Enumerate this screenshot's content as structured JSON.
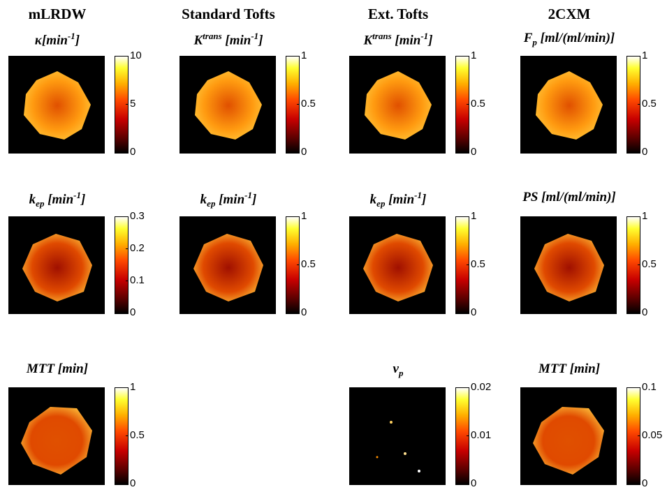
{
  "columns": [
    {
      "header": "mLRDW",
      "panels": [
        {
          "label": [
            {
              "text": "κ[min"
            },
            {
              "text": "-1",
              "style": "sup"
            },
            {
              "text": "]"
            }
          ],
          "ticks": [
            "0",
            "5",
            "10"
          ]
        },
        {
          "label": [
            {
              "text": "k"
            },
            {
              "text": "ep",
              "style": "sub"
            },
            {
              "text": " [min"
            },
            {
              "text": "-1",
              "style": "sup"
            },
            {
              "text": "]"
            }
          ],
          "ticks": [
            "0",
            "0.1",
            "0.2",
            "0.3"
          ]
        },
        {
          "label": [
            {
              "text": "MTT [min]"
            }
          ],
          "ticks": [
            "0",
            "0.5",
            "1"
          ]
        }
      ]
    },
    {
      "header": "Standard Tofts",
      "panels": [
        {
          "label": [
            {
              "text": "K"
            },
            {
              "text": "trans",
              "style": "sup"
            },
            {
              "text": " [min"
            },
            {
              "text": "-1",
              "style": "sup"
            },
            {
              "text": "]"
            }
          ],
          "ticks": [
            "0",
            "0.5",
            "1"
          ]
        },
        {
          "label": [
            {
              "text": "k"
            },
            {
              "text": "ep",
              "style": "sub"
            },
            {
              "text": " [min"
            },
            {
              "text": "-1",
              "style": "sup"
            },
            {
              "text": "]"
            }
          ],
          "ticks": [
            "0",
            "0.5",
            "1"
          ]
        },
        null
      ]
    },
    {
      "header": "Ext. Tofts",
      "panels": [
        {
          "label": [
            {
              "text": "K"
            },
            {
              "text": "trans",
              "style": "sup"
            },
            {
              "text": " [min"
            },
            {
              "text": "-1",
              "style": "sup"
            },
            {
              "text": "]"
            }
          ],
          "ticks": [
            "0",
            "0.5",
            "1"
          ]
        },
        {
          "label": [
            {
              "text": "k"
            },
            {
              "text": "ep",
              "style": "sub"
            },
            {
              "text": " [min"
            },
            {
              "text": "-1",
              "style": "sup"
            },
            {
              "text": "]"
            }
          ],
          "ticks": [
            "0",
            "0.5",
            "1"
          ]
        },
        {
          "label": [
            {
              "text": "v"
            },
            {
              "text": "p",
              "style": "sub"
            }
          ],
          "ticks": [
            "0",
            "0.01",
            "0.02"
          ]
        }
      ]
    },
    {
      "header": "2CXM",
      "panels": [
        {
          "label": [
            {
              "text": "F"
            },
            {
              "text": "p",
              "style": "sub"
            },
            {
              "text": " [ml/(ml/min)]"
            }
          ],
          "ticks": [
            "0",
            "0.5",
            "1"
          ]
        },
        {
          "label": [
            {
              "text": "PS [ml/(ml/min)]"
            }
          ],
          "ticks": [
            "0",
            "0.5",
            "1"
          ]
        },
        {
          "label": [
            {
              "text": "MTT [min]"
            }
          ],
          "ticks": [
            "0",
            "0.05",
            "0.1"
          ]
        }
      ]
    }
  ]
}
